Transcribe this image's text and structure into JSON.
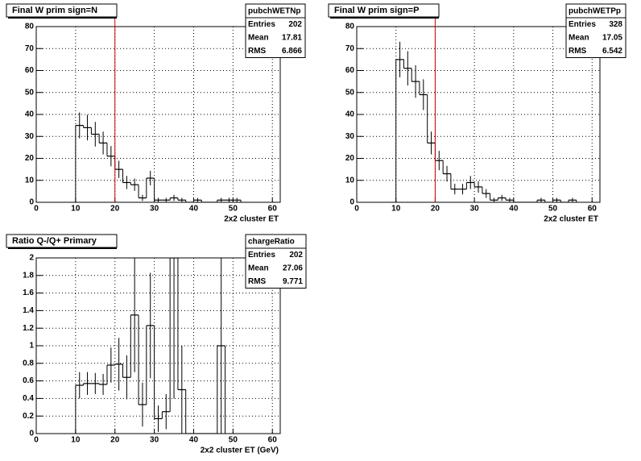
{
  "chart_data": [
    {
      "type": "histogram",
      "title": "Final W  prim sign=N",
      "xlabel": "2x2 cluster ET",
      "stats": {
        "name": "pubchWETNp",
        "rows": [
          {
            "label": "Entries",
            "value": 202
          },
          {
            "label": "Mean",
            "value": 17.81
          },
          {
            "label": "RMS",
            "value": 6.866
          }
        ]
      },
      "bins": [
        10,
        12,
        14,
        16,
        18,
        20,
        22,
        24,
        26,
        28,
        30,
        32,
        34,
        36,
        38,
        40,
        42,
        44,
        46,
        48,
        50,
        52
      ],
      "values": [
        35,
        34,
        31,
        27,
        21,
        15,
        9,
        8,
        2,
        11,
        1,
        1,
        2,
        1,
        0,
        1,
        0,
        0,
        1,
        1,
        1
      ],
      "errors": [
        5.9,
        5.8,
        5.6,
        5.2,
        4.6,
        3.9,
        3,
        2.8,
        1.4,
        3.3,
        1,
        1,
        1.4,
        1,
        0,
        1,
        0,
        0,
        1,
        1,
        1
      ],
      "color": "#000000",
      "cut_line": 20,
      "cut_color": "#cc0000",
      "xlim": [
        0,
        62
      ],
      "ylim": [
        0,
        80
      ],
      "xticks": [
        0,
        10,
        20,
        30,
        40,
        50,
        60
      ],
      "yticks": [
        0,
        10,
        20,
        30,
        40,
        50,
        60,
        70,
        80
      ],
      "grid": true
    },
    {
      "type": "histogram",
      "title": "Final W  prim sign=P",
      "xlabel": "2x2 cluster ET",
      "stats": {
        "name": "pubchWETPp",
        "rows": [
          {
            "label": "Entries",
            "value": 328
          },
          {
            "label": "Mean",
            "value": 17.05
          },
          {
            "label": "RMS",
            "value": 6.542
          }
        ]
      },
      "bins": [
        10,
        12,
        14,
        16,
        18,
        20,
        22,
        24,
        26,
        28,
        30,
        32,
        34,
        36,
        38,
        40,
        42,
        44,
        46,
        48,
        50,
        52,
        54,
        56
      ],
      "values": [
        65,
        61,
        55,
        49,
        27,
        19,
        13,
        6,
        6,
        9,
        7,
        4,
        1,
        2,
        1,
        0,
        0,
        0,
        1,
        0,
        1,
        0,
        1
      ],
      "errors": [
        8.1,
        7.8,
        7.4,
        7,
        5.2,
        4.4,
        3.6,
        2.4,
        2.4,
        3,
        2.6,
        2,
        1,
        1.4,
        1,
        0,
        0,
        0,
        1,
        0,
        1,
        0,
        1
      ],
      "color": "#000000",
      "cut_line": 20,
      "cut_color": "#cc0000",
      "xlim": [
        0,
        62
      ],
      "ylim": [
        0,
        80
      ],
      "xticks": [
        0,
        10,
        20,
        30,
        40,
        50,
        60
      ],
      "yticks": [
        0,
        10,
        20,
        30,
        40,
        50,
        60,
        70,
        80
      ],
      "grid": true
    },
    {
      "type": "histogram",
      "title": "Ratio Q-/Q+ Primary",
      "xlabel": "2x2 cluster ET (GeV)",
      "stats": {
        "name": "chargeRatio",
        "rows": [
          {
            "label": "Entries",
            "value": 202
          },
          {
            "label": "Mean",
            "value": 27.06
          },
          {
            "label": "RMS",
            "value": 9.771
          }
        ]
      },
      "bins": [
        10,
        12,
        14,
        16,
        18,
        20,
        22,
        24,
        26,
        28,
        30,
        32,
        34,
        36,
        38,
        40,
        42,
        44,
        46,
        48
      ],
      "values": [
        0.55,
        0.57,
        0.57,
        0.56,
        0.78,
        0.79,
        0.64,
        1.35,
        0.33,
        1.23,
        0.17,
        0.25,
        2,
        0.5,
        0,
        0,
        0,
        0,
        1
      ],
      "errors": [
        0.15,
        0.13,
        0.12,
        0.12,
        0.2,
        0.3,
        0.25,
        0.65,
        0.25,
        0.6,
        0.15,
        0.2,
        1.6,
        0.5,
        0,
        0,
        0,
        0,
        1
      ],
      "color": "#000000",
      "xlim": [
        0,
        62
      ],
      "ylim": [
        0,
        2
      ],
      "xticks": [
        0,
        10,
        20,
        30,
        40,
        50,
        60
      ],
      "yticks": [
        0,
        0.2,
        0.4,
        0.6,
        0.8,
        1,
        1.2,
        1.4,
        1.6,
        1.8,
        2
      ],
      "grid": true
    }
  ]
}
